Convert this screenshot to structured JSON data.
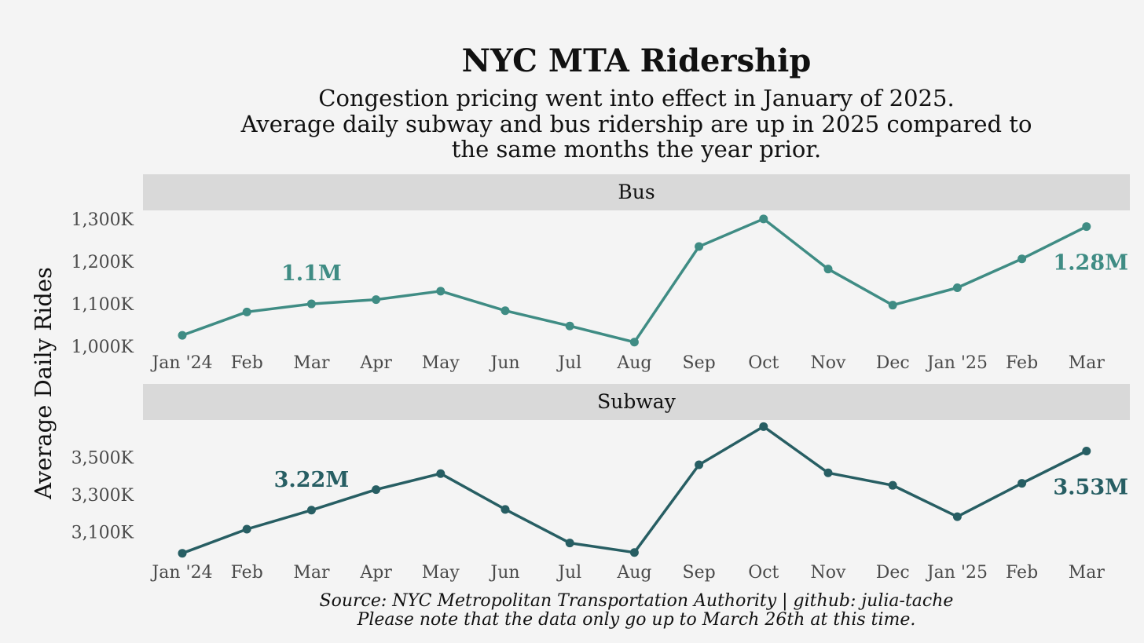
{
  "title": "NYC MTA Ridership",
  "subtitle_lines": [
    "Congestion pricing went into effect in January of 2025.",
    "Average daily subway and bus ridership are up in 2025 compared to",
    "the same months the year prior."
  ],
  "y_axis_label": "Average Daily Rides",
  "caption_lines": [
    "Source: NYC Metropolitan Transportation Authority | github: julia-tache",
    "Please note that the data only go up to March 26th at this time."
  ],
  "colors": {
    "background": "#f4f4f4",
    "panel_strip": "#d9d9d9",
    "bus": "#3f8c84",
    "subway": "#275e63"
  },
  "chart_data": {
    "type": "line",
    "categories": [
      "Jan '24",
      "Feb",
      "Mar",
      "Apr",
      "May",
      "Jun",
      "Jul",
      "Aug",
      "Sep",
      "Oct",
      "Nov",
      "Dec",
      "Jan '25",
      "Feb",
      "Mar"
    ],
    "panels": [
      {
        "name": "Bus",
        "unit": "thousands of rides",
        "values": [
          1026,
          1081,
          1100,
          1110,
          1130,
          1084,
          1048,
          1010,
          1235,
          1300,
          1182,
          1097,
          1138,
          1206,
          1282
        ],
        "ylim": [
          980,
          1320
        ],
        "yticks": [
          1000,
          1100,
          1200,
          1300
        ],
        "ytick_labels": [
          "1,000K",
          "1,100K",
          "1,200K",
          "1,300K"
        ],
        "annotations": [
          {
            "category_index": 2,
            "value": 1100,
            "text": "1.1M"
          },
          {
            "category_index": 14,
            "value": 1282,
            "text": "1.28M"
          }
        ]
      },
      {
        "name": "Subway",
        "unit": "thousands of rides",
        "values": [
          2986,
          3115,
          3217,
          3327,
          3413,
          3221,
          3041,
          2990,
          3460,
          3665,
          3417,
          3350,
          3182,
          3361,
          3534
        ],
        "ylim": [
          2930,
          3700
        ],
        "yticks": [
          3100,
          3300,
          3500
        ],
        "ytick_labels": [
          "3,100K",
          "3,300K",
          "3,500K"
        ],
        "annotations": [
          {
            "category_index": 2,
            "value": 3217,
            "text": "3.22M"
          },
          {
            "category_index": 14,
            "value": 3534,
            "text": "3.53M"
          }
        ]
      }
    ]
  }
}
